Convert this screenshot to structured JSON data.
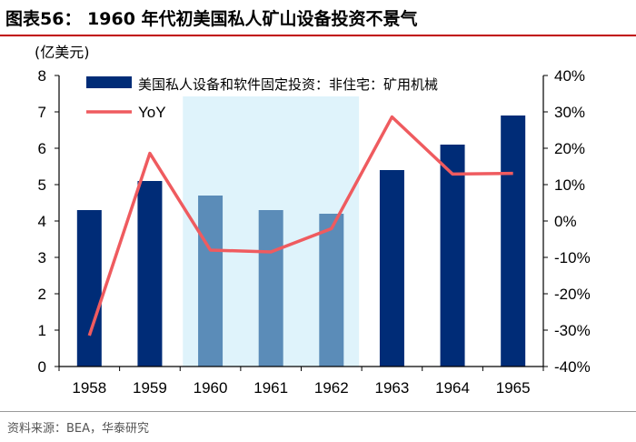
{
  "header": {
    "title": "图表56：  1960 年代初美国私人矿山设备投资不景气"
  },
  "footer": {
    "source": "资料来源：BEA，华泰研究"
  },
  "chart_data": {
    "type": "bar",
    "title": "1960 年代初美国私人矿山设备投资不景气",
    "ylabel": "(亿美元)",
    "categories": [
      "1958",
      "1959",
      "1960",
      "1961",
      "1962",
      "1963",
      "1964",
      "1965"
    ],
    "series": [
      {
        "name": "美国私人设备和软件固定投资：非住宅：矿用机械",
        "type": "bar",
        "axis": "left",
        "values": [
          4.3,
          5.1,
          4.7,
          4.3,
          4.2,
          5.4,
          6.1,
          6.9
        ]
      },
      {
        "name": "YoY",
        "type": "line",
        "axis": "right",
        "values": [
          -31.5,
          18.6,
          -8.0,
          -8.5,
          -2.1,
          28.6,
          12.9,
          13.1
        ]
      }
    ],
    "ylim_left": [
      0,
      8
    ],
    "yticks_left": [
      "0",
      "1",
      "2",
      "3",
      "4",
      "5",
      "6",
      "7",
      "8"
    ],
    "ylim_right": [
      -40,
      40
    ],
    "yticks_right": [
      "-40%",
      "-30%",
      "-20%",
      "-10%",
      "0%",
      "10%",
      "20%",
      "30%",
      "40%"
    ],
    "highlight": {
      "from": "1960",
      "to": "1962"
    },
    "colors": {
      "bar": "#002c77",
      "bar_highlight": "#5b8cb8",
      "line": "#ef5b5f",
      "highlight_bg": "#dff3fb"
    },
    "legend_position": "top"
  }
}
